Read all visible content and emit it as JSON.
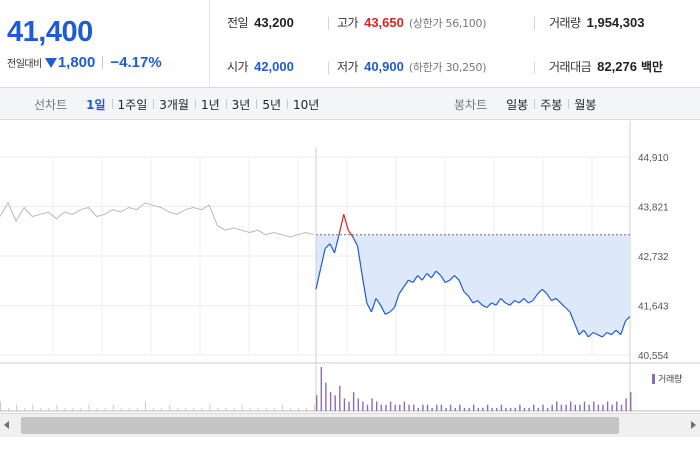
{
  "summary": {
    "current_price": "41,400",
    "change_label": "전일대비",
    "change_value": "1,800",
    "change_rate": "−4.17%",
    "stats": {
      "prev_close": {
        "label": "전일",
        "value": "43,200"
      },
      "open": {
        "label": "시가",
        "value": "42,000"
      },
      "high": {
        "label": "고가",
        "value": "43,650",
        "sub": "(상한가 56,100)"
      },
      "low": {
        "label": "저가",
        "value": "40,900",
        "sub": "(하한가 30,250)"
      },
      "volume": {
        "label": "거래량",
        "value": "1,954,303"
      },
      "amount": {
        "label": "거래대금",
        "value": "82,276",
        "unit": "백만"
      }
    },
    "colors": {
      "down": "#1e5bd6",
      "up": "#e02020"
    },
    "icons": {
      "change": "down-triangle-icon"
    }
  },
  "period_bar": {
    "line_label": "선차트",
    "line_periods": [
      "1일",
      "1주일",
      "3개월",
      "1년",
      "3년",
      "5년",
      "10년"
    ],
    "line_active": "1일",
    "candle_label": "봉차트",
    "candle_periods": [
      "일봉",
      "주봉",
      "월봉"
    ]
  },
  "volume_legend": "거래량",
  "chart_data": {
    "type": "line",
    "y_tick_labels": [
      "44,910",
      "43,821",
      "42,732",
      "41,643",
      "40,554"
    ],
    "ylim": [
      40554,
      44910
    ],
    "grid": true,
    "baseline_prev_close": 43200,
    "today_series": [
      [
        0,
        42000
      ],
      [
        1,
        42450
      ],
      [
        2,
        42900
      ],
      [
        3,
        43000
      ],
      [
        4,
        42800
      ],
      [
        5,
        43200
      ],
      [
        6,
        43650
      ],
      [
        7,
        43300
      ],
      [
        8,
        43150
      ],
      [
        9,
        42950
      ],
      [
        10,
        42300
      ],
      [
        11,
        41700
      ],
      [
        12,
        41500
      ],
      [
        13,
        41800
      ],
      [
        14,
        41650
      ],
      [
        15,
        41450
      ],
      [
        16,
        41500
      ],
      [
        17,
        41600
      ],
      [
        18,
        41900
      ],
      [
        19,
        42050
      ],
      [
        20,
        42200
      ],
      [
        21,
        42150
      ],
      [
        22,
        42300
      ],
      [
        23,
        42200
      ],
      [
        24,
        42350
      ],
      [
        25,
        42250
      ],
      [
        26,
        42400
      ],
      [
        27,
        42300
      ],
      [
        28,
        42150
      ],
      [
        29,
        42200
      ],
      [
        30,
        42300
      ],
      [
        31,
        42200
      ],
      [
        32,
        41950
      ],
      [
        33,
        41850
      ],
      [
        34,
        41700
      ],
      [
        35,
        41750
      ],
      [
        36,
        41650
      ],
      [
        37,
        41600
      ],
      [
        38,
        41700
      ],
      [
        39,
        41650
      ],
      [
        40,
        41800
      ],
      [
        41,
        41700
      ],
      [
        42,
        41650
      ],
      [
        43,
        41750
      ],
      [
        44,
        41700
      ],
      [
        45,
        41800
      ],
      [
        46,
        41700
      ],
      [
        47,
        41750
      ],
      [
        48,
        41900
      ],
      [
        49,
        42000
      ],
      [
        50,
        41900
      ],
      [
        51,
        41750
      ],
      [
        52,
        41800
      ],
      [
        53,
        41700
      ],
      [
        54,
        41600
      ],
      [
        55,
        41500
      ],
      [
        56,
        41250
      ],
      [
        57,
        41000
      ],
      [
        58,
        41100
      ],
      [
        59,
        40950
      ],
      [
        60,
        41050
      ],
      [
        61,
        41000
      ],
      [
        62,
        40950
      ],
      [
        63,
        41050
      ],
      [
        64,
        41000
      ],
      [
        65,
        41100
      ],
      [
        66,
        41000
      ],
      [
        67,
        41300
      ],
      [
        68,
        41400
      ]
    ],
    "prev_day_series": [
      [
        0,
        43600
      ],
      [
        1,
        43900
      ],
      [
        2,
        43500
      ],
      [
        3,
        43800
      ],
      [
        4,
        43600
      ],
      [
        5,
        43650
      ],
      [
        6,
        43700
      ],
      [
        7,
        43550
      ],
      [
        8,
        43700
      ],
      [
        9,
        43650
      ],
      [
        10,
        43750
      ],
      [
        11,
        43800
      ],
      [
        12,
        43600
      ],
      [
        13,
        43650
      ],
      [
        14,
        43750
      ],
      [
        15,
        43700
      ],
      [
        16,
        43800
      ],
      [
        17,
        43750
      ],
      [
        18,
        43900
      ],
      [
        19,
        43850
      ],
      [
        20,
        43800
      ],
      [
        21,
        43700
      ],
      [
        22,
        43650
      ],
      [
        23,
        43750
      ],
      [
        24,
        43800
      ],
      [
        25,
        43750
      ],
      [
        26,
        43850
      ],
      [
        27,
        43400
      ],
      [
        28,
        43300
      ],
      [
        29,
        43350
      ],
      [
        30,
        43300
      ],
      [
        31,
        43250
      ],
      [
        32,
        43300
      ],
      [
        33,
        43200
      ],
      [
        34,
        43250
      ],
      [
        35,
        43200
      ],
      [
        36,
        43150
      ],
      [
        37,
        43200
      ],
      [
        38,
        43250
      ],
      [
        39,
        43200
      ]
    ],
    "volume_series": [
      {
        "name": "prev_day",
        "values": [
          3,
          1,
          2,
          1,
          2,
          1,
          1,
          2,
          1,
          1,
          1,
          2,
          1,
          1,
          2,
          1,
          1,
          1,
          3,
          1,
          1,
          2,
          1,
          1,
          1,
          1,
          2,
          1,
          1,
          1,
          2,
          1,
          1,
          1,
          1,
          2,
          1,
          1,
          1,
          2
        ]
      },
      {
        "name": "today",
        "values": [
          5,
          14,
          9,
          6,
          5,
          8,
          4,
          3,
          6,
          4,
          3,
          2,
          4,
          3,
          2,
          2,
          3,
          2,
          2,
          3,
          2,
          2,
          1,
          2,
          2,
          1,
          2,
          2,
          1,
          2,
          1,
          2,
          1,
          1,
          2,
          1,
          1,
          2,
          1,
          1,
          2,
          1,
          1,
          1,
          2,
          1,
          1,
          2,
          1,
          2,
          1,
          2,
          3,
          2,
          2,
          3,
          2,
          2,
          3,
          2,
          3,
          2,
          2,
          3,
          2,
          3,
          2,
          4,
          6
        ]
      }
    ]
  }
}
